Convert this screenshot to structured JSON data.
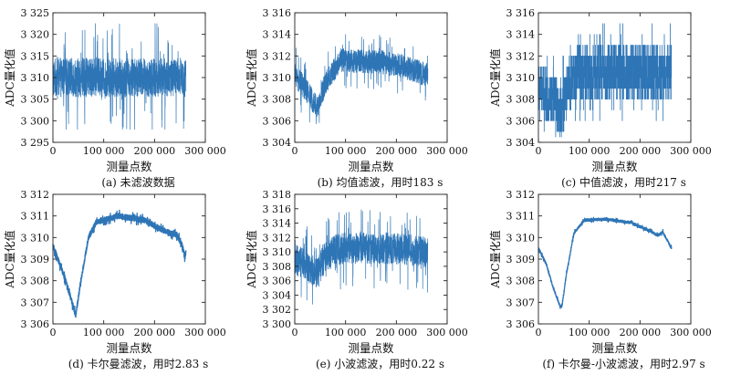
{
  "chart_data": [
    {
      "id": "a",
      "type": "line",
      "caption": "(a) 未滤波数据",
      "xlabel": "测量点数",
      "ylabel": "ADC量化值",
      "xlim": [
        0,
        300000
      ],
      "ylim": [
        3295,
        3325
      ],
      "x_ticks": [
        0,
        100000,
        200000,
        300000
      ],
      "x_tick_labels": [
        "0",
        "100 000",
        "200 000",
        "300 000"
      ],
      "y_ticks": [
        3295,
        3300,
        3305,
        3310,
        3315,
        3320,
        3325
      ],
      "y_tick_labels": [
        "3 295",
        "3 300",
        "3 305",
        "3 310",
        "3 315",
        "3 320",
        "3 325"
      ],
      "series_color": "#2e75b6",
      "x_end": 262000,
      "signal": {
        "profile": [
          [
            0,
            3310
          ],
          [
            262000,
            3310
          ]
        ],
        "noise_band": 4.5,
        "spikes": 9,
        "range_min": 3298,
        "range_max": 3322.5
      }
    },
    {
      "id": "b",
      "type": "line",
      "caption": "(b) 均值滤波，用时183 s",
      "xlabel": "测量点数",
      "ylabel": "ADC量化值",
      "xlim": [
        0,
        300000
      ],
      "ylim": [
        3304,
        3316
      ],
      "x_ticks": [
        0,
        100000,
        200000,
        300000
      ],
      "x_tick_labels": [
        "0",
        "100 000",
        "200 000",
        "300 000"
      ],
      "y_ticks": [
        3304,
        3306,
        3308,
        3310,
        3312,
        3314,
        3316
      ],
      "y_tick_labels": [
        "3 304",
        "3 306",
        "3 308",
        "3 310",
        "3 312",
        "3 314",
        "3 316"
      ],
      "series_color": "#2e75b6",
      "x_end": 262000,
      "signal": {
        "profile": [
          [
            0,
            3310.2
          ],
          [
            20000,
            3309.0
          ],
          [
            45000,
            3307.2
          ],
          [
            60000,
            3309.5
          ],
          [
            90000,
            3311.6
          ],
          [
            150000,
            3311.5
          ],
          [
            210000,
            3311.1
          ],
          [
            262000,
            3310.2
          ]
        ],
        "noise_band": 1.1,
        "spikes": 1.6,
        "range_min": 3305.0,
        "range_max": 3314.0
      }
    },
    {
      "id": "c",
      "type": "line",
      "caption": "(c) 中值滤波，用时217 s",
      "xlabel": "测量点数",
      "ylabel": "ADC量化值",
      "xlim": [
        0,
        300000
      ],
      "ylim": [
        3304,
        3316
      ],
      "x_ticks": [
        0,
        100000,
        200000,
        300000
      ],
      "x_tick_labels": [
        "0",
        "100 000",
        "200 000",
        "300 000"
      ],
      "y_ticks": [
        3304,
        3306,
        3308,
        3310,
        3312,
        3314,
        3316
      ],
      "y_tick_labels": [
        "3 304",
        "3 306",
        "3 308",
        "3 310",
        "3 312",
        "3 314",
        "3 316"
      ],
      "series_color": "#2e75b6",
      "x_end": 262000,
      "quantized": true,
      "signal": {
        "profile": [
          [
            0,
            3309
          ],
          [
            25000,
            3308
          ],
          [
            45000,
            3306.5
          ],
          [
            60000,
            3309.5
          ],
          [
            80000,
            3310.5
          ],
          [
            262000,
            3310.5
          ]
        ],
        "noise_band": 2.4,
        "spikes": 2,
        "range_min": 3304.5,
        "range_max": 3315
      }
    },
    {
      "id": "d",
      "type": "line",
      "caption": "(d) 卡尔曼滤波，用时2.83 s",
      "xlabel": "测量点数",
      "ylabel": "ADC量化值",
      "xlim": [
        0,
        300000
      ],
      "ylim": [
        3306,
        3312
      ],
      "x_ticks": [
        0,
        100000,
        200000,
        300000
      ],
      "x_tick_labels": [
        "0",
        "100 000",
        "200 000",
        "300 000"
      ],
      "y_ticks": [
        3306,
        3307,
        3308,
        3309,
        3310,
        3311,
        3312
      ],
      "y_tick_labels": [
        "3 306",
        "3 307",
        "3 308",
        "3 309",
        "3 310",
        "3 311",
        "3 312"
      ],
      "series_color": "#2e75b6",
      "x_end": 262000,
      "signal": {
        "profile": [
          [
            0,
            3309.6
          ],
          [
            10000,
            3309.0
          ],
          [
            25000,
            3308.0
          ],
          [
            40000,
            3306.8
          ],
          [
            45000,
            3306.4
          ],
          [
            55000,
            3308.0
          ],
          [
            70000,
            3310.0
          ],
          [
            85000,
            3310.7
          ],
          [
            130000,
            3311.0
          ],
          [
            180000,
            3310.8
          ],
          [
            220000,
            3310.3
          ],
          [
            245000,
            3310.1
          ],
          [
            255000,
            3309.6
          ],
          [
            260000,
            3309.1
          ],
          [
            262000,
            3309.4
          ]
        ],
        "noise_band": 0.13,
        "spikes": 0.15,
        "range_min": 3306.2,
        "range_max": 3311.3
      }
    },
    {
      "id": "e",
      "type": "line",
      "caption": "(e) 小波滤波，用时0.22 s",
      "xlabel": "测量点数",
      "ylabel": "ADC量化值",
      "xlim": [
        0,
        300000
      ],
      "ylim": [
        3300,
        3318
      ],
      "x_ticks": [
        0,
        100000,
        200000,
        300000
      ],
      "x_tick_labels": [
        "0",
        "100 000",
        "200 000",
        "300 000"
      ],
      "y_ticks": [
        3300,
        3302,
        3304,
        3306,
        3308,
        3310,
        3312,
        3314,
        3316,
        3318
      ],
      "y_tick_labels": [
        "3 300",
        "3 302",
        "3 304",
        "3 306",
        "3 308",
        "3 310",
        "3 312",
        "3 314",
        "3 316",
        "3 318"
      ],
      "series_color": "#2e75b6",
      "x_end": 262000,
      "signal": {
        "profile": [
          [
            0,
            3309.0
          ],
          [
            25000,
            3308.0
          ],
          [
            45000,
            3307.0
          ],
          [
            60000,
            3309.5
          ],
          [
            90000,
            3310.5
          ],
          [
            200000,
            3310.5
          ],
          [
            262000,
            3310.0
          ]
        ],
        "noise_band": 2.2,
        "spikes": 3.5,
        "range_min": 3301.5,
        "range_max": 3316.5
      }
    },
    {
      "id": "f",
      "type": "line",
      "caption": "(f) 卡尔曼-小波滤波，用时2.97 s",
      "xlabel": "测量点数",
      "ylabel": "ADC量化值",
      "xlim": [
        0,
        300000
      ],
      "ylim": [
        3306,
        3312
      ],
      "x_ticks": [
        0,
        100000,
        200000,
        300000
      ],
      "x_tick_labels": [
        "0",
        "100 000",
        "200 000",
        "300 000"
      ],
      "y_ticks": [
        3306,
        3307,
        3308,
        3309,
        3310,
        3311,
        3312
      ],
      "y_tick_labels": [
        "3 306",
        "3 307",
        "3 308",
        "3 309",
        "3 310",
        "3 311",
        "3 312"
      ],
      "series_color": "#2e75b6",
      "x_end": 262000,
      "signal": {
        "profile": [
          [
            0,
            3309.5
          ],
          [
            15000,
            3308.8
          ],
          [
            30000,
            3307.6
          ],
          [
            43000,
            3306.8
          ],
          [
            47000,
            3306.9
          ],
          [
            55000,
            3308.3
          ],
          [
            70000,
            3310.2
          ],
          [
            90000,
            3310.8
          ],
          [
            130000,
            3310.85
          ],
          [
            180000,
            3310.7
          ],
          [
            220000,
            3310.3
          ],
          [
            235000,
            3310.1
          ],
          [
            245000,
            3310.25
          ],
          [
            255000,
            3309.8
          ],
          [
            262000,
            3309.5
          ]
        ],
        "noise_band": 0.06,
        "spikes": 0.06,
        "range_min": 3306.6,
        "range_max": 3311.1
      }
    }
  ]
}
